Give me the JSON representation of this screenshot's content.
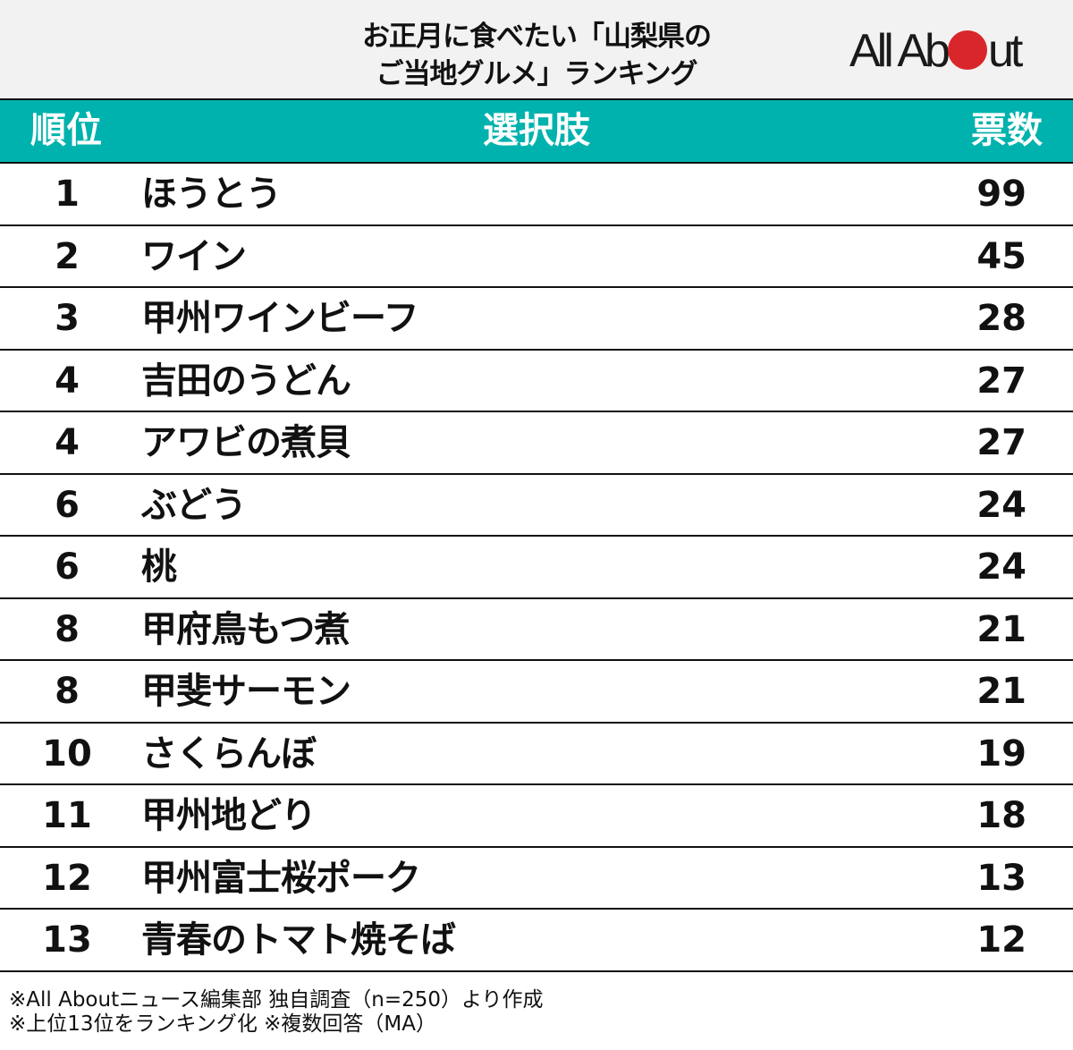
{
  "header": {
    "title_line1": "お正月に食べたい「山梨県の",
    "title_line2": "ご当地グルメ」ランキング",
    "logo_left": "All Ab",
    "logo_right": "ut",
    "logo_dot_color": "#d9262a"
  },
  "table": {
    "columns": [
      "順位",
      "選択肢",
      "票数"
    ],
    "header_color": "#00b2ad",
    "rows": [
      {
        "rank": "1",
        "name": "ほうとう",
        "votes": "99"
      },
      {
        "rank": "2",
        "name": "ワイン",
        "votes": "45"
      },
      {
        "rank": "3",
        "name": "甲州ワインビーフ",
        "votes": "28"
      },
      {
        "rank": "4",
        "name": "吉田のうどん",
        "votes": "27"
      },
      {
        "rank": "4",
        "name": "アワビの煮貝",
        "votes": "27"
      },
      {
        "rank": "6",
        "name": "ぶどう",
        "votes": "24"
      },
      {
        "rank": "6",
        "name": "桃",
        "votes": "24"
      },
      {
        "rank": "8",
        "name": "甲府鳥もつ煮",
        "votes": "21"
      },
      {
        "rank": "8",
        "name": "甲斐サーモン",
        "votes": "21"
      },
      {
        "rank": "10",
        "name": "さくらんぼ",
        "votes": "19"
      },
      {
        "rank": "11",
        "name": "甲州地どり",
        "votes": "18"
      },
      {
        "rank": "12",
        "name": "甲州富士桜ポーク",
        "votes": "13"
      },
      {
        "rank": "13",
        "name": "青春のトマト焼そば",
        "votes": "12"
      }
    ]
  },
  "footer": {
    "note1": "※All Aboutニュース編集部 独自調査（n=250）より作成",
    "note2": "※上位13位をランキング化 ※複数回答（MA）"
  },
  "chart_data": {
    "type": "table",
    "title": "お正月に食べたい「山梨県のご当地グルメ」ランキング",
    "columns": [
      "順位",
      "選択肢",
      "票数"
    ],
    "categories": [
      "ほうとう",
      "ワイン",
      "甲州ワインビーフ",
      "吉田のうどん",
      "アワビの煮貝",
      "ぶどう",
      "桃",
      "甲府鳥もつ煮",
      "甲斐サーモン",
      "さくらんぼ",
      "甲州地どり",
      "甲州富士桜ポーク",
      "青春のトマト焼そば"
    ],
    "ranks": [
      1,
      2,
      3,
      4,
      4,
      6,
      6,
      8,
      8,
      10,
      11,
      12,
      13
    ],
    "values": [
      99,
      45,
      28,
      27,
      27,
      24,
      24,
      21,
      21,
      19,
      18,
      13,
      12
    ],
    "notes": [
      "※All Aboutニュース編集部 独自調査（n=250）より作成",
      "※上位13位をランキング化 ※複数回答（MA）"
    ]
  }
}
